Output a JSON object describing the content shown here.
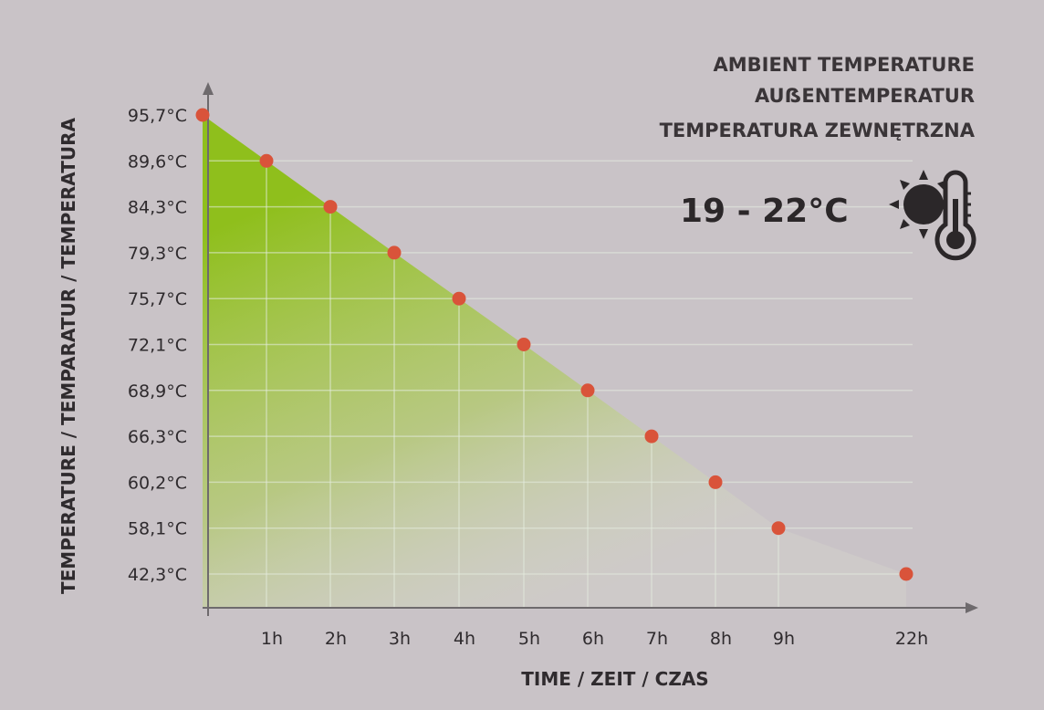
{
  "chart_data": {
    "type": "area",
    "categories": [
      "",
      "1h",
      "2h",
      "3h",
      "4h",
      "5h",
      "6h",
      "7h",
      "8h",
      "9h",
      "22h"
    ],
    "values": [
      95.7,
      89.6,
      84.3,
      79.3,
      75.7,
      72.1,
      68.9,
      66.3,
      60.2,
      58.1,
      42.3
    ],
    "y_tick_labels": [
      "95,7°C",
      "89,6°C",
      "84,3°C",
      "79,3°C",
      "75,7°C",
      "72,1°C",
      "68,9°C",
      "66,3°C",
      "60,2°C",
      "58,1°C",
      "42,3°C"
    ],
    "title": "",
    "xlabel": "TIME / ZEIT / CZAS",
    "ylabel": "TEMPERATURE / TEMPARATUR / TEMPERATURA",
    "grid": true,
    "colors": {
      "fill": "#8fbf1c",
      "marker": "#d9533a",
      "axis": "#6e6a6d",
      "grid": "#e6ece0"
    }
  },
  "ambient": {
    "lines": [
      "AMBIENT TEMPERATURE",
      "AUẞENTEMPERATUR",
      "TEMPERATURA ZEWNĘTRZNA"
    ],
    "range": "19 - 22°C",
    "icon": "sun-thermometer-icon"
  }
}
